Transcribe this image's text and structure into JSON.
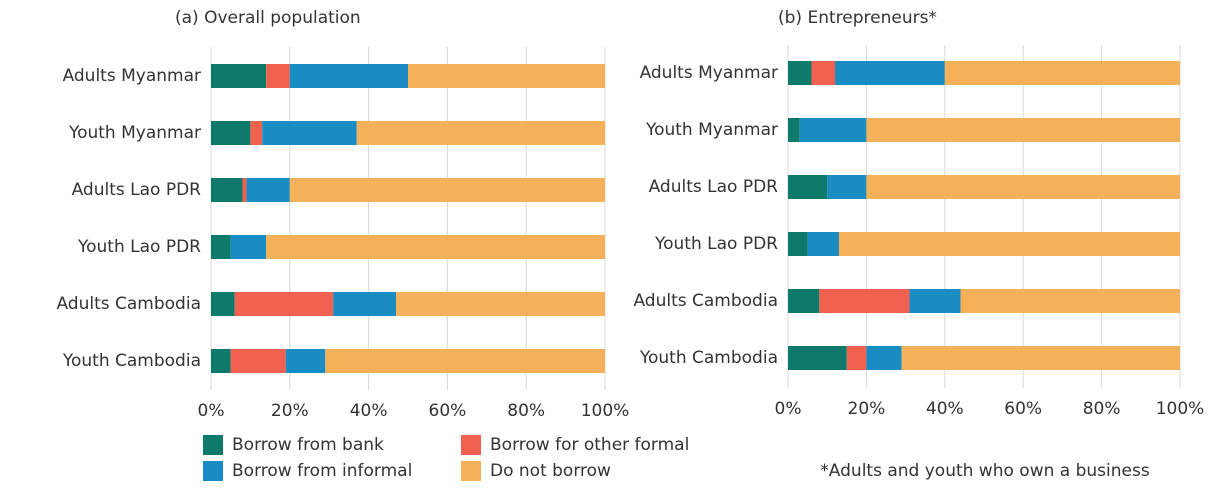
{
  "chart_data": [
    {
      "type": "stacked_barh",
      "title": "(a) Overall population",
      "categories": [
        "Adults Myanmar",
        "Youth Myanmar",
        "Adults Lao PDR",
        "Youth Lao PDR",
        "Adults Cambodia",
        "Youth Cambodia"
      ],
      "series": [
        {
          "name": "Borrow from bank",
          "color": "#0e7a6b",
          "values": [
            14,
            10,
            8,
            5,
            6,
            5
          ]
        },
        {
          "name": "Borrow for other formal",
          "color": "#f0614f",
          "values": [
            6,
            3,
            1,
            0,
            25,
            14
          ]
        },
        {
          "name": "Borrow from informal",
          "color": "#1a8cc4",
          "values": [
            30,
            24,
            11,
            9,
            16,
            10
          ]
        },
        {
          "name": "Do not borrow",
          "color": "#f5b05a",
          "values": [
            50,
            63,
            80,
            86,
            53,
            71
          ]
        }
      ],
      "xlim": [
        0,
        100
      ],
      "xticks": [
        {
          "value": 0,
          "label": "0%"
        },
        {
          "value": 20,
          "label": "20%"
        },
        {
          "value": 40,
          "label": "40%"
        },
        {
          "value": 60,
          "label": "60%"
        },
        {
          "value": 80,
          "label": "80%"
        },
        {
          "value": 100,
          "label": "100%"
        }
      ],
      "grid": true
    },
    {
      "type": "stacked_barh",
      "title": "(b) Entrepreneurs*",
      "note": "*Adults and youth who own a business",
      "categories": [
        "Adults Myanmar",
        "Youth Myanmar",
        "Adults Lao PDR",
        "Youth Lao PDR",
        "Adults Cambodia",
        "Youth Cambodia"
      ],
      "series": [
        {
          "color": "#0e7a6b",
          "values": [
            6,
            3,
            10,
            5,
            8,
            15
          ]
        },
        {
          "color": "#f0614f",
          "values": [
            6,
            0,
            0,
            0,
            23,
            5
          ]
        },
        {
          "color": "#1a8cc4",
          "values": [
            28,
            17,
            10,
            8,
            13,
            9
          ]
        },
        {
          "color": "#f5b05a",
          "values": [
            60,
            80,
            80,
            87,
            56,
            71
          ]
        }
      ],
      "xlim": [
        0,
        100
      ],
      "xticks": [
        {
          "value": 0,
          "label": "0%"
        },
        {
          "value": 20,
          "label": "20%"
        },
        {
          "value": 40,
          "label": "40%"
        },
        {
          "value": 60,
          "label": "60%"
        },
        {
          "value": 80,
          "label": "80%"
        },
        {
          "value": 100,
          "label": "100%"
        }
      ],
      "grid": true
    }
  ]
}
